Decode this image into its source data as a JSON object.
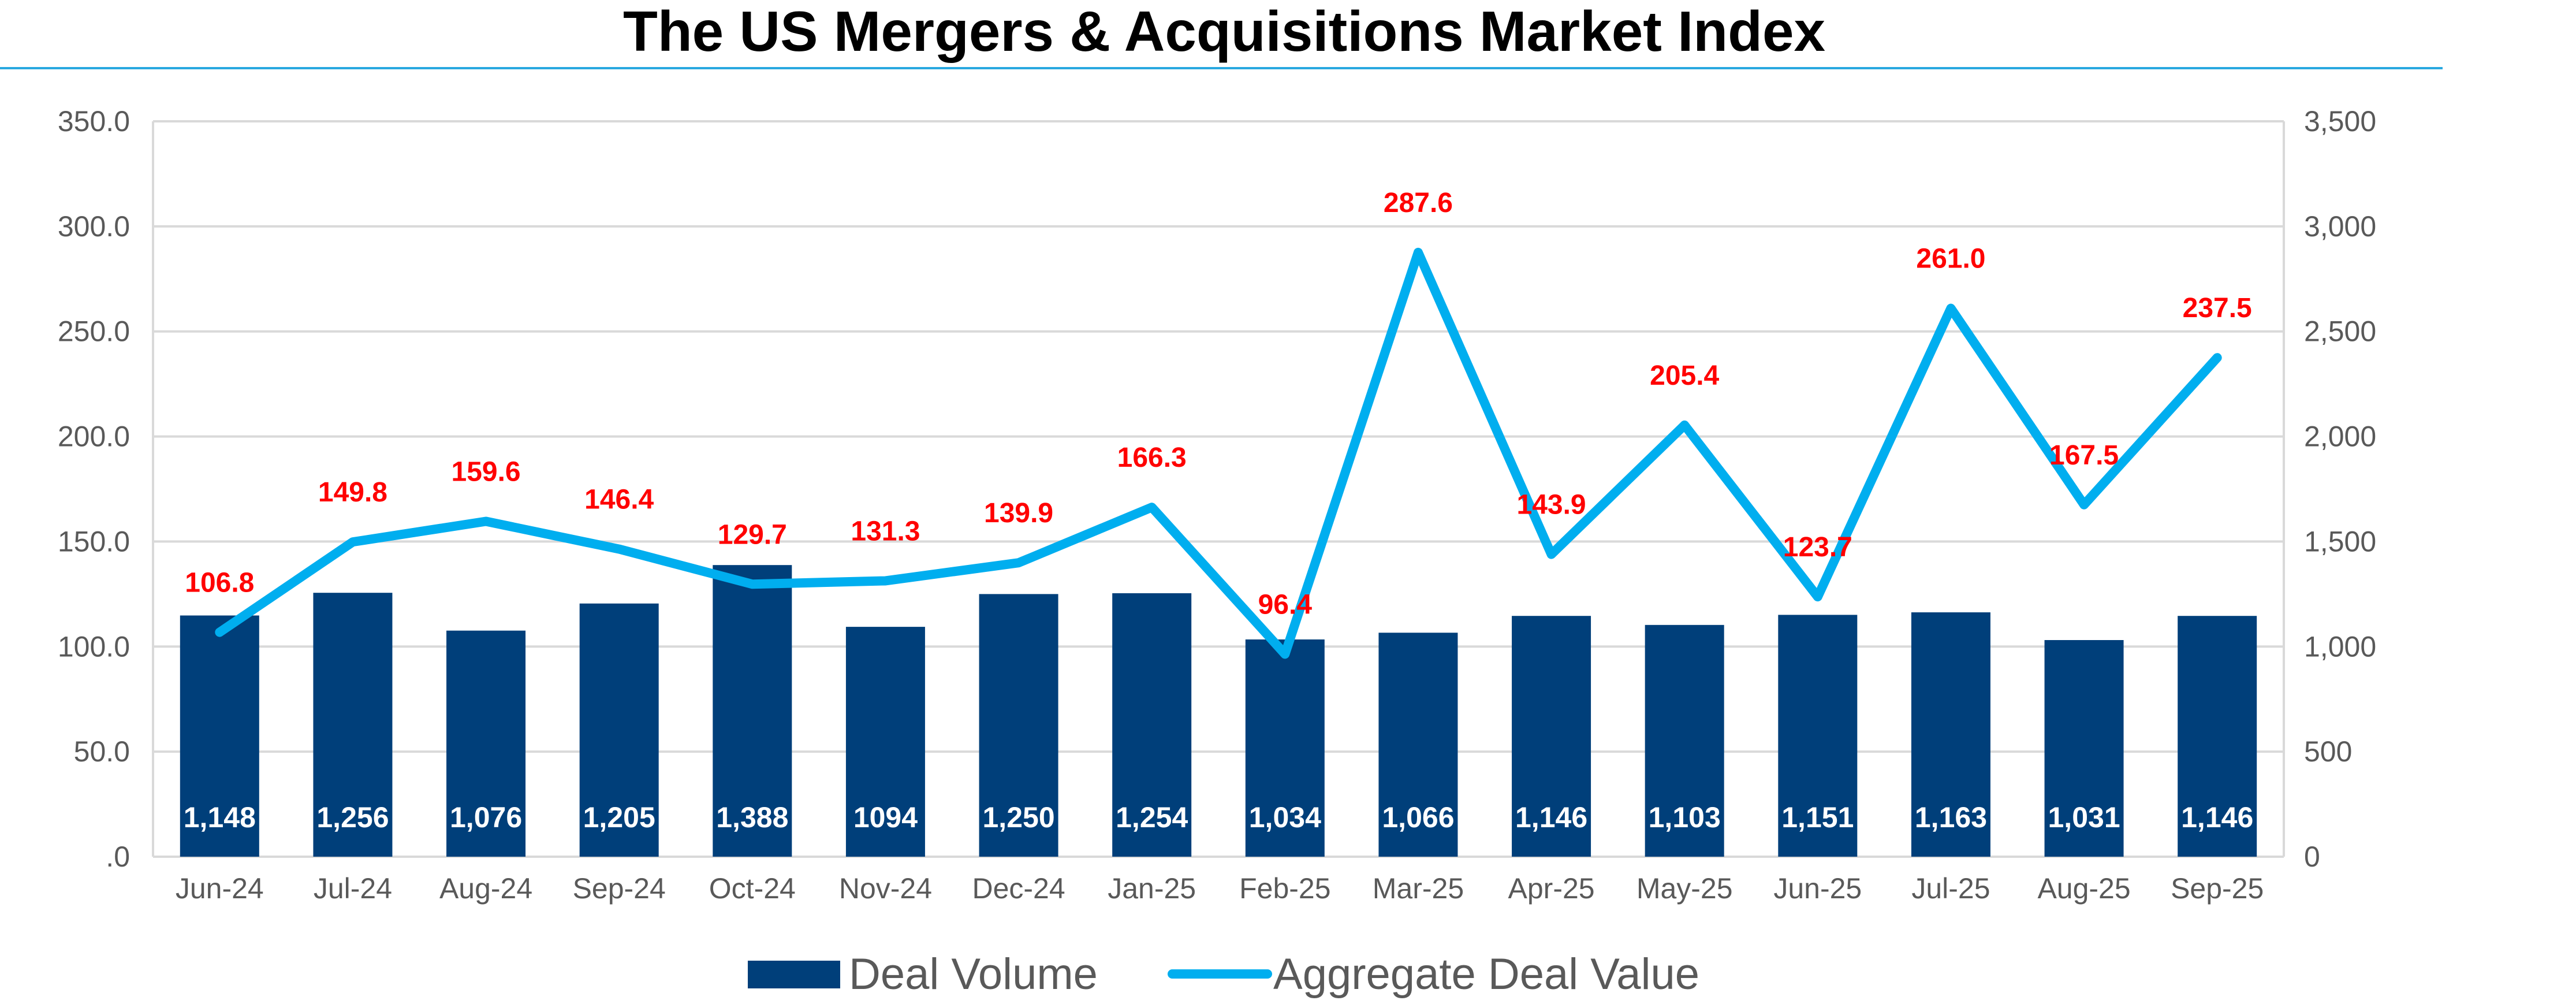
{
  "chart_data": {
    "type": "bar+line",
    "title": "The US Mergers & Acquisitions Market Index",
    "categories": [
      "Jun-24",
      "Jul-24",
      "Aug-24",
      "Sep-24",
      "Oct-24",
      "Nov-24",
      "Dec-24",
      "Jan-25",
      "Feb-25",
      "Mar-25",
      "Apr-25",
      "May-25",
      "Jun-25",
      "Jul-25",
      "Aug-25",
      "Sep-25"
    ],
    "series": [
      {
        "name": "Deal Volume",
        "type": "bar",
        "axis": "right",
        "values": [
          1148,
          1256,
          1076,
          1205,
          1388,
          1094,
          1250,
          1254,
          1034,
          1066,
          1146,
          1103,
          1151,
          1163,
          1031,
          1146
        ],
        "labels": [
          "1,148",
          "1,256",
          "1,076",
          "1,205",
          "1,388",
          "1094",
          "1,250",
          "1,254",
          "1,034",
          "1,066",
          "1,146",
          "1,103",
          "1,151",
          "1,163",
          "1,031",
          "1,146"
        ],
        "color": "#003F7A"
      },
      {
        "name": "Aggregate Deal Value",
        "type": "line",
        "axis": "left",
        "values": [
          106.8,
          149.8,
          159.6,
          146.4,
          129.7,
          131.3,
          139.9,
          166.3,
          96.4,
          287.6,
          143.9,
          205.4,
          123.7,
          261.0,
          167.5,
          237.5
        ],
        "labels": [
          "106.8",
          "149.8",
          "159.6",
          "146.4",
          "129.7",
          "131.3",
          "139.9",
          "166.3",
          "96.4",
          "287.6",
          "143.9",
          "205.4",
          "123.7",
          "261.0",
          "167.5",
          "237.5"
        ],
        "color": "#00AEEF",
        "label_color": "#FF0000"
      }
    ],
    "left_axis": {
      "range": [
        0,
        350
      ],
      "ticks": [
        0,
        50,
        100,
        150,
        200,
        250,
        300,
        350
      ],
      "tick_labels": [
        ".0",
        "50.0",
        "100.0",
        "150.0",
        "200.0",
        "250.0",
        "300.0",
        "350.0"
      ]
    },
    "right_axis": {
      "range": [
        0,
        3500
      ],
      "ticks": [
        0,
        500,
        1000,
        1500,
        2000,
        2500,
        3000,
        3500
      ],
      "tick_labels": [
        "0",
        "500",
        "1,000",
        "1,500",
        "2,000",
        "2,500",
        "3,000",
        "3,500"
      ]
    },
    "grid": true,
    "legend": {
      "position": "bottom",
      "entries": [
        "Deal Volume",
        "Aggregate Deal Value"
      ]
    },
    "colors": {
      "title_rule": "#29A8E0",
      "grid": "#D9D9D9",
      "axis_text": "#595959"
    }
  }
}
